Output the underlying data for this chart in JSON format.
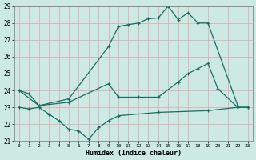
{
  "xlabel": "Humidex (Indice chaleur)",
  "bg_color": "#cce9e4",
  "grid_color": "#dda8a8",
  "line_color": "#1a6e62",
  "xlim": [
    -0.5,
    23.5
  ],
  "ylim": [
    21,
    29
  ],
  "xticks": [
    0,
    1,
    2,
    3,
    4,
    5,
    6,
    7,
    8,
    9,
    10,
    11,
    12,
    13,
    14,
    15,
    16,
    17,
    18,
    19,
    20,
    21,
    22,
    23
  ],
  "yticks": [
    21,
    22,
    23,
    24,
    25,
    26,
    27,
    28,
    29
  ],
  "line1_x": [
    0,
    1,
    2,
    5,
    9,
    10,
    11,
    12,
    13,
    14,
    15,
    16,
    17,
    18,
    19,
    22
  ],
  "line1_y": [
    24.0,
    23.8,
    23.1,
    23.5,
    26.6,
    27.8,
    27.9,
    28.0,
    28.25,
    28.3,
    29.0,
    28.2,
    28.6,
    28.0,
    28.0,
    23.1
  ],
  "line2_x": [
    0,
    2,
    5,
    9,
    10,
    12,
    14,
    16,
    17,
    18,
    19,
    20,
    22,
    23
  ],
  "line2_y": [
    24.0,
    23.1,
    23.3,
    24.4,
    23.6,
    23.6,
    23.6,
    24.5,
    25.0,
    25.3,
    25.6,
    24.1,
    23.0,
    23.0
  ],
  "line3_x": [
    0,
    1,
    2,
    3,
    4,
    5,
    6,
    7,
    8,
    9,
    10,
    14,
    19,
    22,
    23
  ],
  "line3_y": [
    23.0,
    22.9,
    23.0,
    22.6,
    22.2,
    21.7,
    21.6,
    21.1,
    21.8,
    22.2,
    22.5,
    22.7,
    22.8,
    23.0,
    23.0
  ]
}
